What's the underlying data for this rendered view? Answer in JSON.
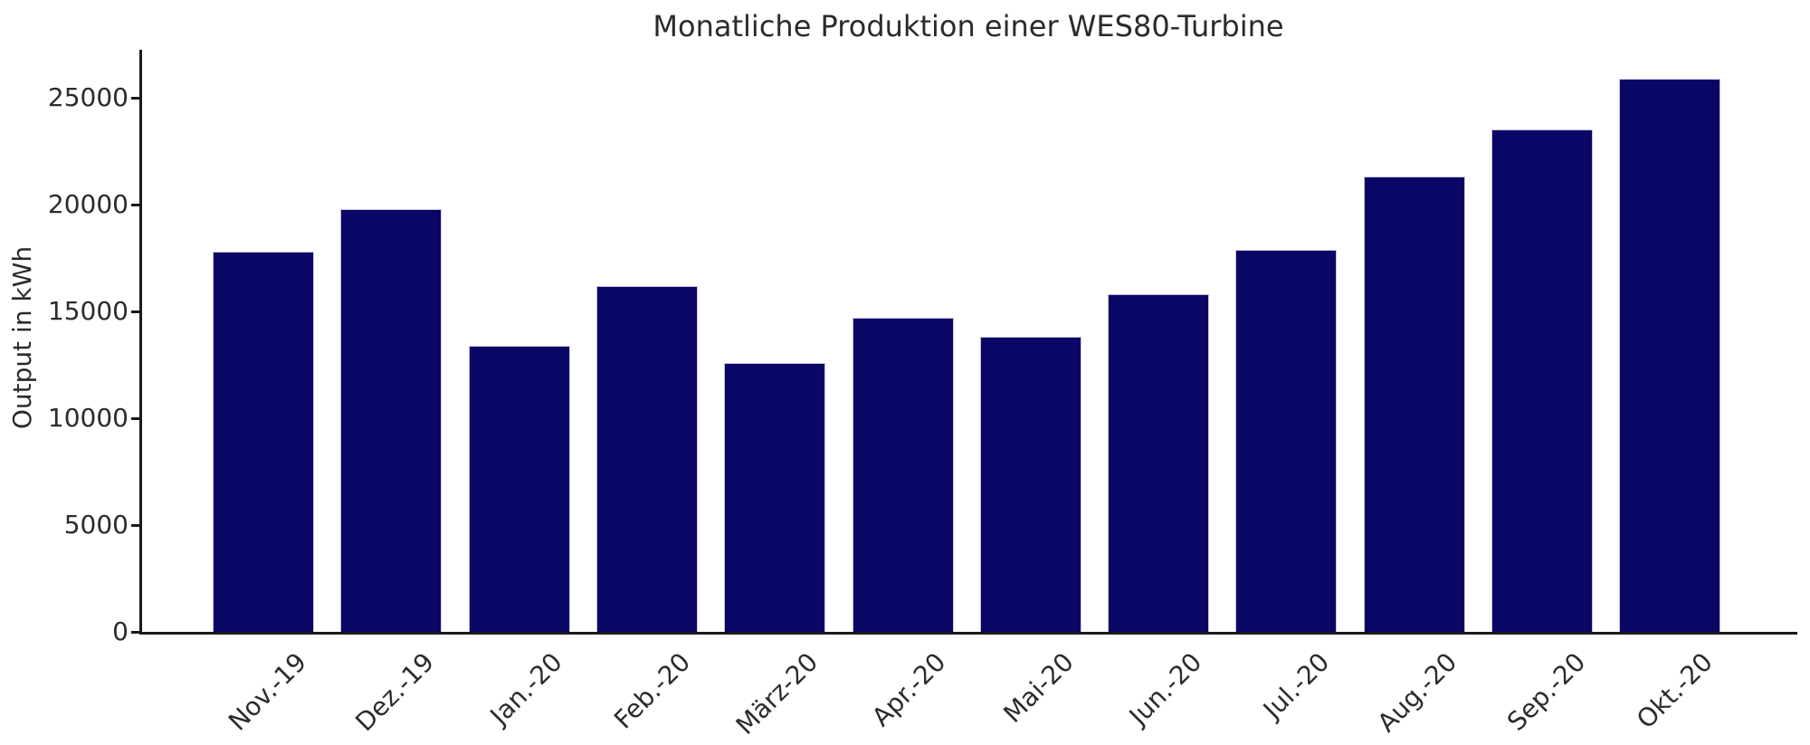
{
  "chart_data": {
    "type": "bar",
    "title": "Monatliche Produktion einer WES80-Turbine",
    "xlabel": "",
    "ylabel": "Output in kWh",
    "categories": [
      "Nov.-19",
      "Dez.-19",
      "Jan.-20",
      "Feb.-20",
      "März-20",
      "Apr.-20",
      "Mai-20",
      "Jun.-20",
      "Jul.-20",
      "Aug.-20",
      "Sep.-20",
      "Okt.-20"
    ],
    "values": [
      17800,
      19800,
      13400,
      16200,
      12600,
      14700,
      13800,
      15800,
      17900,
      21300,
      23500,
      25900
    ],
    "yticks": [
      0,
      5000,
      10000,
      15000,
      20000,
      25000
    ],
    "ylim": [
      0,
      27300
    ],
    "grid": false,
    "legend": null,
    "bar_color": "#0a0666",
    "bar_edge_color": "#c6c6da",
    "axis_color": "#1a1a1a",
    "text_color": "#2b2b2b",
    "background_color": "#ffffff"
  }
}
